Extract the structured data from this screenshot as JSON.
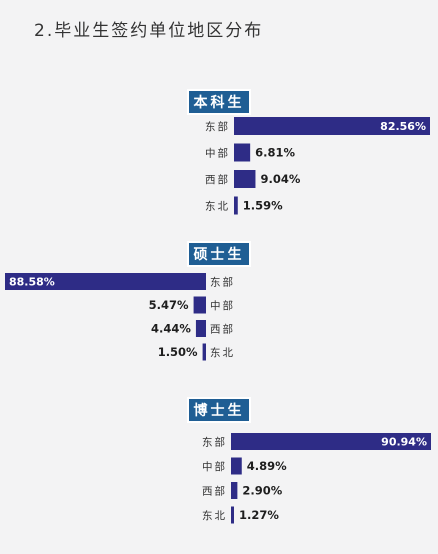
{
  "page": {
    "title": "2.毕业生签约单位地区分布"
  },
  "colors": {
    "bar": "#2e2c86",
    "badge_bg": "#1f5e94",
    "badge_border": "#ffffff"
  },
  "chart_data": [
    {
      "type": "bar",
      "orientation": "horizontal",
      "title": "本科生",
      "categories": [
        "东部",
        "中部",
        "西部",
        "东北"
      ],
      "values": [
        82.56,
        6.81,
        9.04,
        1.59
      ],
      "unit": "%"
    },
    {
      "type": "bar",
      "orientation": "horizontal-reversed",
      "title": "硕士生",
      "categories": [
        "东部",
        "中部",
        "西部",
        "东北"
      ],
      "values": [
        88.58,
        5.47,
        4.44,
        1.5
      ],
      "unit": "%"
    },
    {
      "type": "bar",
      "orientation": "horizontal",
      "title": "博士生",
      "categories": [
        "东部",
        "中部",
        "西部",
        "东北"
      ],
      "values": [
        90.94,
        4.89,
        2.9,
        1.27
      ],
      "unit": "%"
    }
  ]
}
